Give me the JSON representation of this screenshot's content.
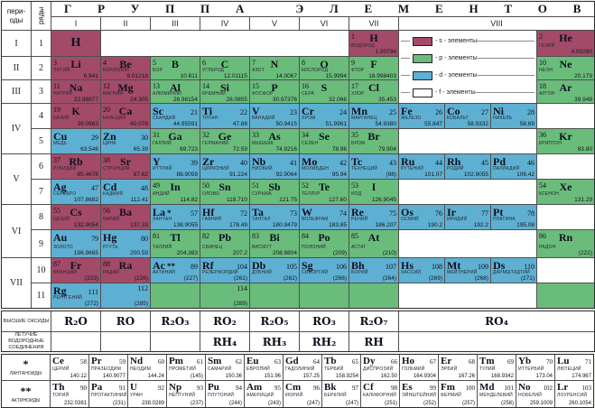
{
  "header": {
    "periods_label": "пери- оды",
    "rows_label": "ряды",
    "title": "ГРУППА ЭЛЕМЕНТОВ",
    "group_numbers": [
      "I",
      "II",
      "III",
      "IV",
      "V",
      "VI",
      "VII",
      "VIII"
    ]
  },
  "colors": {
    "s": "#a24a68",
    "p": "#6abc7b",
    "d": "#5eb0d2",
    "f": "#ffffff",
    "line": "#4f4f4f"
  },
  "legend": {
    "items": [
      {
        "key": "s",
        "label": "- s - элементы",
        "color": "#a24a68"
      },
      {
        "key": "p",
        "label": "- p - элементы",
        "color": "#6abc7b"
      },
      {
        "key": "d",
        "label": "- d - элементы",
        "color": "#5eb0d2"
      },
      {
        "key": "f",
        "label": "- f - элементы",
        "color": "#ffffff"
      }
    ]
  },
  "periods": [
    {
      "label": "I",
      "span": 1
    },
    {
      "label": "II",
      "span": 1
    },
    {
      "label": "III",
      "span": 1
    },
    {
      "label": "IV",
      "span": 2
    },
    {
      "label": "V",
      "span": 2
    },
    {
      "label": "VI",
      "span": 2
    },
    {
      "label": "VII",
      "span": 2
    }
  ],
  "row_numbers": [
    "1",
    "2",
    "3",
    "4",
    "5",
    "6",
    "7",
    "8",
    "9",
    "10",
    "11"
  ],
  "table_rows": [
    [
      {
        "c": 3,
        "k": "s",
        "l": "c",
        "y": "H"
      },
      {
        "c": 4,
        "s": 5,
        "k": "w"
      },
      {
        "c": 9,
        "k": "s",
        "l": "m",
        "n": "1",
        "y": "H",
        "m": "ВОДОРОД",
        "a": "1.00794"
      },
      {
        "c": 13,
        "k": "s",
        "l": "m",
        "n": "2",
        "y": "He",
        "m": "ГЕЛИЙ",
        "a": "4.00260"
      }
    ],
    [
      {
        "c": 3,
        "k": "s",
        "l": "m",
        "n": "3",
        "y": "Li",
        "m": "ЛИТИЙ",
        "a": "6.941"
      },
      {
        "c": 4,
        "k": "s",
        "l": "m",
        "n": "4",
        "y": "Be",
        "m": "БЕРИЛЛИЙ",
        "a": "9.01218"
      },
      {
        "c": 5,
        "k": "p",
        "l": "m",
        "n": "5",
        "y": "B",
        "m": "БОР",
        "a": "10.811"
      },
      {
        "c": 6,
        "k": "p",
        "l": "m",
        "n": "6",
        "y": "C",
        "m": "УГЛЕРОД",
        "a": "12.01115"
      },
      {
        "c": 7,
        "k": "p",
        "l": "m",
        "n": "7",
        "y": "N",
        "m": "АЗОТ",
        "a": "14.0067"
      },
      {
        "c": 8,
        "k": "p",
        "l": "m",
        "n": "8",
        "y": "O",
        "m": "КИСЛОРОД",
        "a": "15.9994"
      },
      {
        "c": 9,
        "k": "p",
        "l": "m",
        "n": "9",
        "y": "F",
        "m": "ФТОР",
        "a": "18.998403"
      },
      {
        "c": 13,
        "k": "p",
        "l": "m",
        "n": "10",
        "y": "Ne",
        "m": "НЕОН",
        "a": "20.179"
      }
    ],
    [
      {
        "c": 3,
        "k": "s",
        "l": "m",
        "n": "11",
        "y": "Na",
        "m": "НАТРИЙ",
        "a": "22.98977"
      },
      {
        "c": 4,
        "k": "s",
        "l": "m",
        "n": "12",
        "y": "Mg",
        "m": "МАГНИЙ",
        "a": "24.305"
      },
      {
        "c": 5,
        "k": "p",
        "l": "m",
        "n": "13",
        "y": "Al",
        "m": "АЛЮМИНИЙ",
        "a": "26.98154"
      },
      {
        "c": 6,
        "k": "p",
        "l": "m",
        "n": "14",
        "y": "Si",
        "m": "КРЕМНИЙ",
        "a": "28.0855"
      },
      {
        "c": 7,
        "k": "p",
        "l": "m",
        "n": "15",
        "y": "P",
        "m": "ФОСФОР",
        "a": "30.97376"
      },
      {
        "c": 8,
        "k": "p",
        "l": "m",
        "n": "16",
        "y": "S",
        "m": "СЕРА",
        "a": "32.066"
      },
      {
        "c": 9,
        "k": "p",
        "l": "m",
        "n": "17",
        "y": "Cl",
        "m": "ХЛОР",
        "a": "35.453"
      },
      {
        "c": 13,
        "k": "p",
        "l": "m",
        "n": "18",
        "y": "Ar",
        "m": "АРГОН",
        "a": "39.948"
      }
    ],
    [
      {
        "c": 3,
        "k": "s",
        "l": "m",
        "n": "19",
        "y": "K",
        "m": "КАЛИЙ",
        "a": "39.0983"
      },
      {
        "c": 4,
        "k": "s",
        "l": "m",
        "n": "20",
        "y": "Ca",
        "m": "КАЛЬЦИЙ",
        "a": "40.078"
      },
      {
        "c": 5,
        "k": "d",
        "l": "b",
        "y": "Sc",
        "n": "21",
        "m": "СКАНДИЙ",
        "a": "44.95591"
      },
      {
        "c": 6,
        "k": "d",
        "l": "b",
        "y": "Ti",
        "n": "22",
        "m": "ТИТАН",
        "a": "47.88"
      },
      {
        "c": 7,
        "k": "d",
        "l": "b",
        "y": "V",
        "n": "23",
        "m": "ВАНАДИЙ",
        "a": "50.9415"
      },
      {
        "c": 8,
        "k": "d",
        "l": "b",
        "y": "Cr",
        "n": "24",
        "m": "ХРОМ",
        "a": "51.9961"
      },
      {
        "c": 9,
        "k": "d",
        "l": "b",
        "y": "Mn",
        "n": "25",
        "m": "МАРГАНЕЦ",
        "a": "54.9380"
      },
      {
        "c": 10,
        "k": "d",
        "l": "b",
        "y": "Fe",
        "n": "26",
        "m": "ЖЕЛЕЗО",
        "a": "55.847"
      },
      {
        "c": 11,
        "k": "d",
        "l": "b",
        "y": "Co",
        "n": "27",
        "m": "КОБАЛЬТ",
        "a": "58.9332"
      },
      {
        "c": 12,
        "k": "d",
        "l": "b",
        "y": "Ni",
        "n": "28",
        "m": "НИКЕЛЬ",
        "a": "58.69"
      },
      {
        "c": 13,
        "k": "w"
      }
    ],
    [
      {
        "c": 3,
        "k": "d",
        "l": "b",
        "y": "Cu",
        "n": "29",
        "m": "МЕДЬ",
        "a": "63.546"
      },
      {
        "c": 4,
        "k": "d",
        "l": "b",
        "y": "Zn",
        "n": "30",
        "m": "ЦИНК",
        "a": "65.39"
      },
      {
        "c": 5,
        "k": "p",
        "l": "m",
        "n": "31",
        "y": "Ga",
        "m": "ГАЛЛИЙ",
        "a": "69.723"
      },
      {
        "c": 6,
        "k": "p",
        "l": "m",
        "n": "32",
        "y": "Ge",
        "m": "ГЕРМАНИЙ",
        "a": "72.59"
      },
      {
        "c": 7,
        "k": "p",
        "l": "m",
        "n": "33",
        "y": "As",
        "m": "МЫШЬЯК",
        "a": "74.9216"
      },
      {
        "c": 8,
        "k": "p",
        "l": "m",
        "n": "34",
        "y": "Se",
        "m": "СЕЛЕН",
        "a": "78.96"
      },
      {
        "c": 9,
        "k": "p",
        "l": "m",
        "n": "35",
        "y": "Br",
        "m": "БРОМ",
        "a": "79.904"
      },
      {
        "c": 10,
        "s": 3,
        "k": "w"
      },
      {
        "c": 13,
        "k": "p",
        "l": "m",
        "n": "36",
        "y": "Kr",
        "m": "КРИПТОН",
        "a": "83.80"
      }
    ],
    [
      {
        "c": 3,
        "k": "s",
        "l": "m",
        "n": "37",
        "y": "Rb",
        "m": "РУБИДИЙ",
        "a": "85.4678"
      },
      {
        "c": 4,
        "k": "s",
        "l": "m",
        "n": "38",
        "y": "Sr",
        "m": "СТРОНЦИЙ",
        "a": "87.62"
      },
      {
        "c": 5,
        "k": "d",
        "l": "b",
        "y": "Y",
        "n": "39",
        "m": "ИТТРИЙ",
        "a": "88.9059"
      },
      {
        "c": 6,
        "k": "d",
        "l": "b",
        "y": "Zr",
        "n": "40",
        "m": "ЦИРКОНИЙ",
        "a": "91.224"
      },
      {
        "c": 7,
        "k": "d",
        "l": "b",
        "y": "Nb",
        "n": "41",
        "m": "НИОБИЙ",
        "a": "92.9064"
      },
      {
        "c": 8,
        "k": "d",
        "l": "b",
        "y": "Mo",
        "n": "42",
        "m": "МОЛИБДЕН",
        "a": "95.94"
      },
      {
        "c": 9,
        "k": "d",
        "l": "b",
        "y": "Tc",
        "n": "43",
        "m": "ТЕХНЕЦИЙ",
        "a": "(98)"
      },
      {
        "c": 10,
        "k": "d",
        "l": "b",
        "y": "Ru",
        "n": "44",
        "m": "РУТЕНИЙ",
        "a": "101.07"
      },
      {
        "c": 11,
        "k": "d",
        "l": "b",
        "y": "Rh",
        "n": "45",
        "m": "РОДИЙ",
        "a": "102.9055"
      },
      {
        "c": 12,
        "k": "d",
        "l": "b",
        "y": "Pd",
        "n": "46",
        "m": "ПАЛЛАДИЙ",
        "a": "106.42"
      },
      {
        "c": 13,
        "k": "w"
      }
    ],
    [
      {
        "c": 3,
        "k": "d",
        "l": "b",
        "y": "Ag",
        "n": "47",
        "m": "СЕРЕБРО",
        "a": "107.8682"
      },
      {
        "c": 4,
        "k": "d",
        "l": "b",
        "y": "Cd",
        "n": "48",
        "m": "КАДМИЙ",
        "a": "112.41"
      },
      {
        "c": 5,
        "k": "p",
        "l": "m",
        "n": "49",
        "y": "In",
        "m": "ИНДИЙ",
        "a": "114.82"
      },
      {
        "c": 6,
        "k": "p",
        "l": "m",
        "n": "50",
        "y": "Sn",
        "m": "ОЛОВО",
        "a": "118.710"
      },
      {
        "c": 7,
        "k": "p",
        "l": "m",
        "n": "51",
        "y": "Sb",
        "m": "СУРЬМА",
        "a": "121.75"
      },
      {
        "c": 8,
        "k": "p",
        "l": "m",
        "n": "52",
        "y": "Te",
        "m": "ТЕЛЛУР",
        "a": "127.60"
      },
      {
        "c": 9,
        "k": "p",
        "l": "m",
        "n": "53",
        "y": "I",
        "m": "ИОД",
        "a": "126.9045"
      },
      {
        "c": 10,
        "s": 3,
        "k": "w"
      },
      {
        "c": 13,
        "k": "p",
        "l": "m",
        "n": "54",
        "y": "Xe",
        "m": "КСЕНОН",
        "a": "131.29"
      }
    ],
    [
      {
        "c": 3,
        "k": "s",
        "l": "m",
        "n": "55",
        "y": "Cs",
        "m": "ЦЕЗИЙ",
        "a": "132.9054"
      },
      {
        "c": 4,
        "k": "s",
        "l": "m",
        "n": "56",
        "y": "Ba",
        "m": "БАРИЙ",
        "a": "137.33"
      },
      {
        "c": 5,
        "k": "d",
        "l": "b",
        "y": "La",
        "st": "*",
        "n": "57",
        "m": "ЛАНТАН",
        "a": "138.9055"
      },
      {
        "c": 6,
        "k": "d",
        "l": "b",
        "y": "Hf",
        "n": "72",
        "m": "ГАФНИЙ",
        "a": "178.49"
      },
      {
        "c": 7,
        "k": "d",
        "l": "b",
        "y": "Ta",
        "n": "73",
        "m": "ТАНТАЛ",
        "a": "180.9479"
      },
      {
        "c": 8,
        "k": "d",
        "l": "b",
        "y": "W",
        "n": "74",
        "m": "ВОЛЬФРАМ",
        "a": "183.85"
      },
      {
        "c": 9,
        "k": "d",
        "l": "b",
        "y": "Re",
        "n": "75",
        "m": "РЕНИЙ",
        "a": "186.207"
      },
      {
        "c": 10,
        "k": "d",
        "l": "b",
        "y": "Os",
        "n": "76",
        "m": "ОСМИЙ",
        "a": "190.2"
      },
      {
        "c": 11,
        "k": "d",
        "l": "b",
        "y": "Ir",
        "n": "77",
        "m": "ИРИДИЙ",
        "a": "192.2"
      },
      {
        "c": 12,
        "k": "d",
        "l": "b",
        "y": "Pt",
        "n": "78",
        "m": "ПЛАТИНА",
        "a": "195.08"
      },
      {
        "c": 13,
        "k": "w"
      }
    ],
    [
      {
        "c": 3,
        "k": "d",
        "l": "b",
        "y": "Au",
        "n": "79",
        "m": "ЗОЛОТО",
        "a": "196.9665"
      },
      {
        "c": 4,
        "k": "d",
        "l": "b",
        "y": "Hg",
        "n": "80",
        "m": "РТУТЬ",
        "a": "200.59"
      },
      {
        "c": 5,
        "k": "p",
        "l": "m",
        "n": "81",
        "y": "Tl",
        "m": "ТАЛЛИЙ",
        "a": "204.383"
      },
      {
        "c": 6,
        "k": "p",
        "l": "m",
        "n": "82",
        "y": "Pb",
        "m": "СВИНЕЦ",
        "a": "207.2"
      },
      {
        "c": 7,
        "k": "p",
        "l": "m",
        "n": "83",
        "y": "Bi",
        "m": "ВИСМУТ",
        "a": "208.9804"
      },
      {
        "c": 8,
        "k": "p",
        "l": "m",
        "n": "84",
        "y": "Po",
        "m": "ПОЛОНИЙ",
        "a": "(209)"
      },
      {
        "c": 9,
        "k": "p",
        "l": "m",
        "n": "85",
        "y": "At",
        "m": "АСТАТ",
        "a": "(210)"
      },
      {
        "c": 10,
        "s": 3,
        "k": "w"
      },
      {
        "c": 13,
        "k": "p",
        "l": "m",
        "n": "86",
        "y": "Rn",
        "m": "РАДОН",
        "a": "(222)"
      }
    ],
    [
      {
        "c": 3,
        "k": "s",
        "l": "m",
        "n": "87",
        "y": "Fr",
        "m": "ФРАНЦИЙ",
        "a": "(223)"
      },
      {
        "c": 4,
        "k": "s",
        "l": "m",
        "n": "88",
        "y": "Ra",
        "m": "РАДИЙ",
        "a": "(226)"
      },
      {
        "c": 5,
        "k": "d",
        "l": "b",
        "y": "Ac",
        "st": "**",
        "n": "89",
        "m": "АКТИНИЙ",
        "a": "(227)"
      },
      {
        "c": 6,
        "k": "d",
        "l": "b",
        "y": "Rf",
        "n": "104",
        "m": "РЕЗЕРФОРДИЙ",
        "a": "(261)"
      },
      {
        "c": 7,
        "k": "d",
        "l": "b",
        "y": "Db",
        "n": "105",
        "m": "ДУБНИЙ",
        "a": "(262)"
      },
      {
        "c": 8,
        "k": "d",
        "l": "b",
        "y": "Sg",
        "n": "106",
        "m": "СИБОРГИЙ",
        "a": "(266)"
      },
      {
        "c": 9,
        "k": "d",
        "l": "b",
        "y": "Bh",
        "n": "107",
        "m": "БОРИЙ",
        "a": "(264)"
      },
      {
        "c": 10,
        "k": "d",
        "l": "b",
        "y": "Hs",
        "n": "108",
        "m": "ХАССИЙ",
        "a": "(269)"
      },
      {
        "c": 11,
        "k": "d",
        "l": "b",
        "y": "Mt",
        "n": "109",
        "m": "МЕЙТНЕРИЙ",
        "a": "(268)"
      },
      {
        "c": 12,
        "k": "d",
        "l": "b",
        "y": "Ds",
        "n": "110",
        "m": "ДАРМШТАДТИЙ",
        "a": "(271)"
      },
      {
        "c": 13,
        "k": "w"
      }
    ],
    [
      {
        "c": 3,
        "k": "d",
        "l": "b",
        "y": "Rg",
        "n": "111",
        "m": "РЕНТГЕНИЙ",
        "a": "(272)"
      },
      {
        "c": 4,
        "k": "d",
        "l": "o",
        "n": "112",
        "a": "(285)"
      },
      {
        "c": 5,
        "k": "p"
      },
      {
        "c": 6,
        "k": "p",
        "l": "o",
        "n": "114",
        "a": "(289)"
      },
      {
        "c": 7,
        "k": "p"
      },
      {
        "c": 8,
        "k": "p"
      },
      {
        "c": 9,
        "k": "p"
      },
      {
        "c": 10,
        "s": 3,
        "k": "w"
      },
      {
        "c": 13,
        "k": "p"
      }
    ]
  ],
  "oxides": {
    "label": "ВЫСШИЕ ОКСИДЫ",
    "values": [
      "R₂O",
      "RO",
      "R₂O₃",
      "RO₂",
      "R₂O₅",
      "RO₃",
      "R₂O₇",
      "RO₄"
    ]
  },
  "hydrides": {
    "label": "ЛЕТУЧИЕ ВОДОРОДНЫЕ СОЕДИНЕНИЯ",
    "values": [
      "",
      "",
      "",
      "RH₄",
      "RH₃",
      "RH₂",
      "RH",
      ""
    ]
  },
  "lanthanides": {
    "star": "*",
    "label": "ЛАНТАНОИДЫ",
    "items": [
      {
        "y": "Ce",
        "n": "58",
        "m": "ЦЕРИЙ",
        "a": "140.12"
      },
      {
        "y": "Pr",
        "n": "59",
        "m": "ПРАЗЕОДИМ",
        "a": "140.9077"
      },
      {
        "y": "Nd",
        "n": "60",
        "m": "НЕОДИМ",
        "a": "144.24"
      },
      {
        "y": "Pm",
        "n": "61",
        "m": "ПРОМЕТИЙ",
        "a": "(145)"
      },
      {
        "y": "Sm",
        "n": "62",
        "m": "САМАРИЙ",
        "a": "150.36"
      },
      {
        "y": "Eu",
        "n": "63",
        "m": "ЕВРОПИЙ",
        "a": "151.96"
      },
      {
        "y": "Gd",
        "n": "64",
        "m": "ГАДОЛИНИЙ",
        "a": "157.25"
      },
      {
        "y": "Tb",
        "n": "65",
        "m": "ТЕРБИЙ",
        "a": "158.9254"
      },
      {
        "y": "Dy",
        "n": "66",
        "m": "ДИСПРОЗИЙ",
        "a": "162.50"
      },
      {
        "y": "Ho",
        "n": "67",
        "m": "ГОЛЬМИЙ",
        "a": "164.9304"
      },
      {
        "y": "Er",
        "n": "68",
        "m": "ЭРБИЙ",
        "a": "167.26"
      },
      {
        "y": "Tm",
        "n": "69",
        "m": "ТУЛИЙ",
        "a": "168.9342"
      },
      {
        "y": "Yb",
        "n": "70",
        "m": "ИТТЕРБИЙ",
        "a": "173.04"
      },
      {
        "y": "Lu",
        "n": "71",
        "m": "ЛЮТЕЦИЙ",
        "a": "174.967"
      }
    ]
  },
  "actinides": {
    "star": "**",
    "label": "АКТИНОИДЫ",
    "items": [
      {
        "y": "Th",
        "n": "90",
        "m": "ТОРИЙ",
        "a": "232.0381"
      },
      {
        "y": "Pa",
        "n": "91",
        "m": "ПРОТАКТИНИЙ",
        "a": "(231)"
      },
      {
        "y": "U",
        "n": "92",
        "m": "УРАН",
        "a": "238.0289"
      },
      {
        "y": "Np",
        "n": "93",
        "m": "НЕПТУНИЙ",
        "a": "(237)"
      },
      {
        "y": "Pu",
        "n": "94",
        "m": "ПЛУТОНИЙ",
        "a": "(244)"
      },
      {
        "y": "Am",
        "n": "95",
        "m": "АМЕРИЦИЙ",
        "a": "(243)"
      },
      {
        "y": "Cm",
        "n": "96",
        "m": "КЮРИЙ",
        "a": "(247)"
      },
      {
        "y": "Bk",
        "n": "97",
        "m": "БЕРКЛИЙ",
        "a": "(247)"
      },
      {
        "y": "Cf",
        "n": "98",
        "m": "КАЛИФОРНИЙ",
        "a": "(251)"
      },
      {
        "y": "Es",
        "n": "99",
        "m": "ЭЙНШТЕЙНИЙ",
        "a": "(252)"
      },
      {
        "y": "Fm",
        "n": "100",
        "m": "ФЕРМИЙ",
        "a": "(257)"
      },
      {
        "y": "Md",
        "n": "101",
        "m": "МЕНДЕЛЕВИЙ",
        "a": "(258)"
      },
      {
        "y": "No",
        "n": "102",
        "m": "НОБЕЛИЙ",
        "a": "259.1009"
      },
      {
        "y": "Lr",
        "n": "103",
        "m": "ЛОУРЕНСИЙ",
        "a": "260.1054"
      }
    ]
  }
}
